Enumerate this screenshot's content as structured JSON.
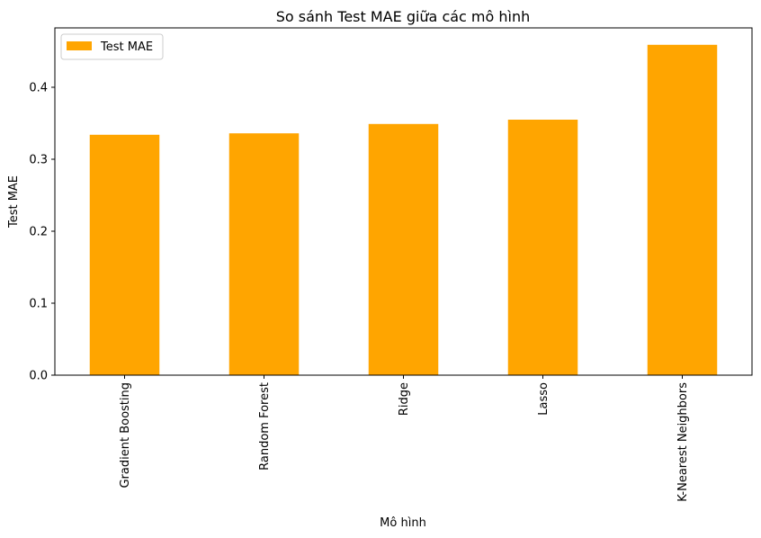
{
  "chart_data": {
    "type": "bar",
    "title": "So sánh Test MAE giữa các mô hình",
    "xlabel": "Mô hình",
    "ylabel": "Test MAE",
    "categories": [
      "Gradient Boosting",
      "Random Forest",
      "Ridge",
      "Lasso",
      "K-Nearest Neighbors"
    ],
    "series": [
      {
        "name": "Test MAE",
        "values": [
          0.334,
          0.336,
          0.349,
          0.355,
          0.459
        ],
        "color": "#ffa500"
      }
    ],
    "ylim": [
      0,
      0.4825
    ],
    "yticks": [
      0.0,
      0.1,
      0.2,
      0.3,
      0.4
    ],
    "ytick_labels": [
      "0.0",
      "0.1",
      "0.2",
      "0.3",
      "0.4"
    ],
    "grid": false,
    "legend_position": "upper-left"
  }
}
